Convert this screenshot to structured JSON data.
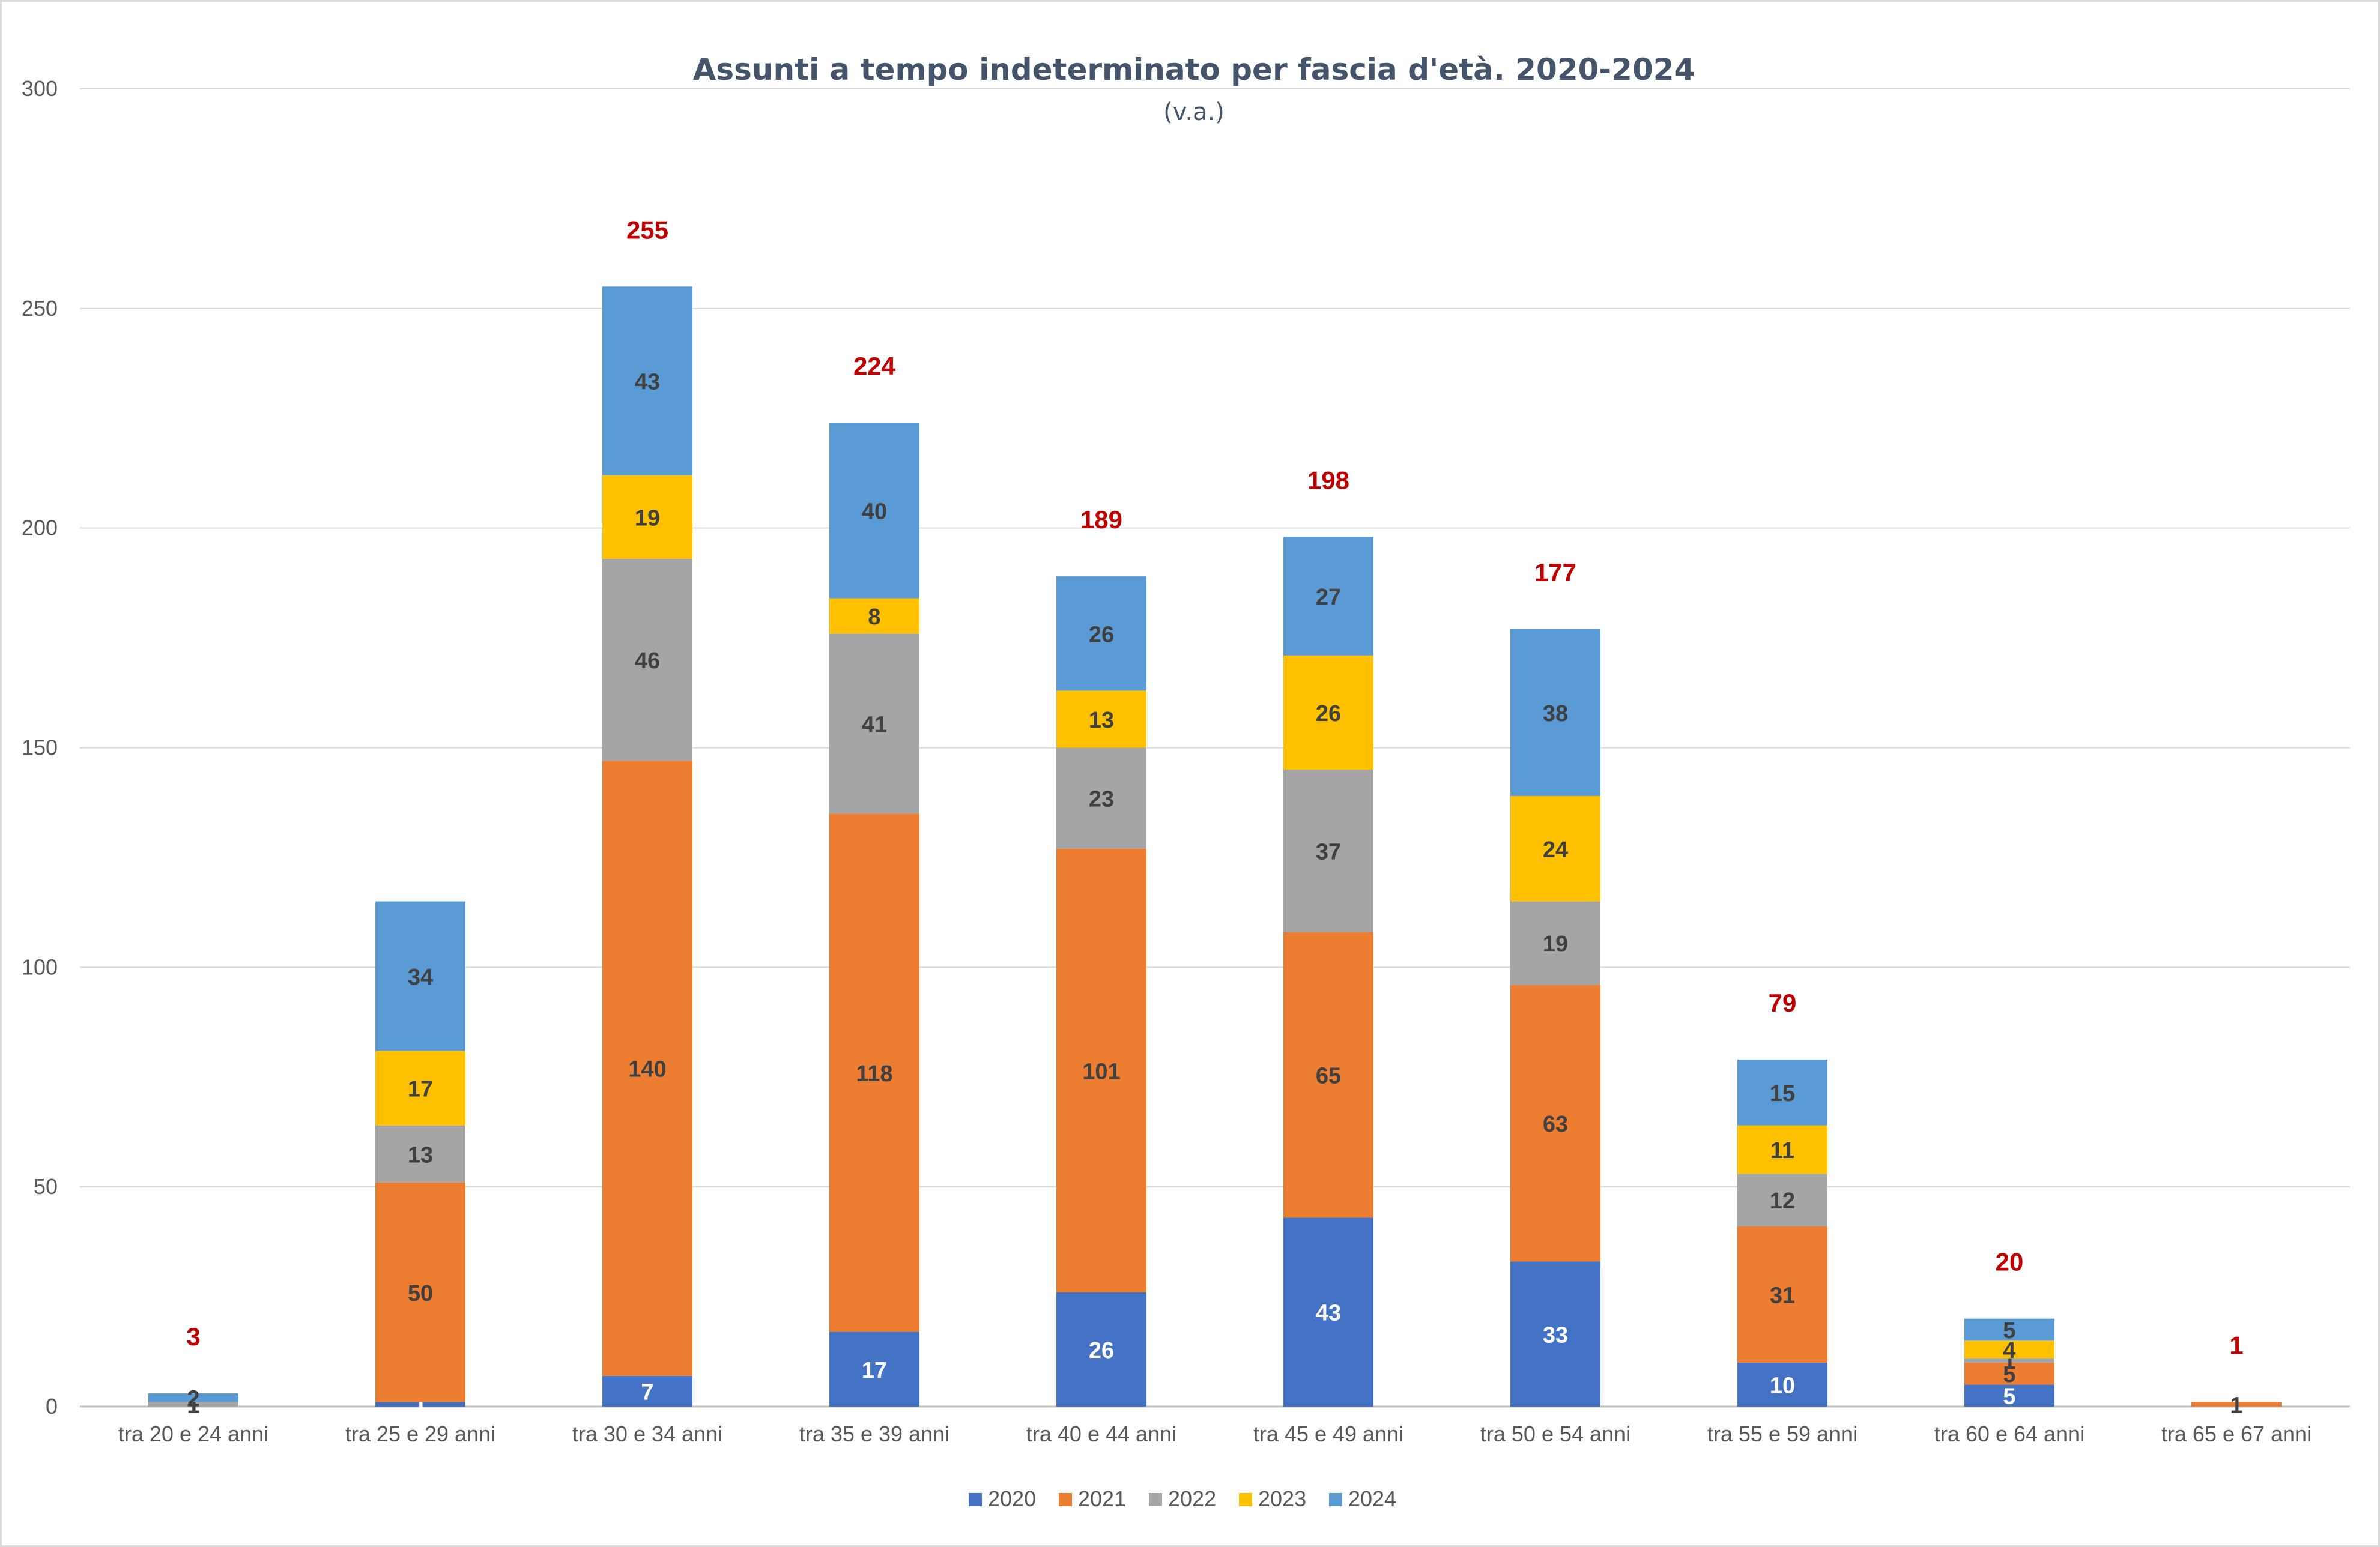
{
  "chart_data": {
    "type": "bar",
    "stacked": true,
    "title": "Assunti a tempo indeterminato per fascia d'età. 2020-2024",
    "subtitle": "(v.a.)",
    "ylim": [
      0,
      300
    ],
    "yticks": [
      "0",
      "50",
      "100",
      "150",
      "200",
      "250",
      "300"
    ],
    "grid": true,
    "legend_position": "bottom",
    "categories": [
      "tra 20 e 24 anni",
      "tra 25 e 29 anni",
      "tra 30 e 34 anni",
      "tra 35 e 39 anni",
      "tra 40 e 44 anni",
      "tra 45 e 49 anni",
      "tra 50 e 54 anni",
      "tra 55 e 59 anni",
      "tra 60 e 64 anni",
      "tra 65 e 67 anni"
    ],
    "series": [
      {
        "name": "2020",
        "color": "#4472c4",
        "label_color": "#ffffff",
        "values": [
          0,
          1,
          7,
          17,
          26,
          43,
          33,
          10,
          5,
          0
        ]
      },
      {
        "name": "2021",
        "color": "#ed7d31",
        "label_color": "#404040",
        "values": [
          0,
          50,
          140,
          118,
          101,
          65,
          63,
          31,
          5,
          1
        ]
      },
      {
        "name": "2022",
        "color": "#a5a5a5",
        "label_color": "#404040",
        "values": [
          1,
          13,
          46,
          41,
          23,
          37,
          19,
          12,
          1,
          0
        ]
      },
      {
        "name": "2023",
        "color": "#ffc000",
        "label_color": "#404040",
        "values": [
          0,
          17,
          19,
          8,
          13,
          26,
          24,
          11,
          4,
          0
        ]
      },
      {
        "name": "2024",
        "color": "#5b9bd5",
        "label_color": "#404040",
        "values": [
          2,
          34,
          43,
          40,
          26,
          27,
          38,
          15,
          5,
          0
        ]
      }
    ],
    "totals": [
      "3",
      "",
      "255",
      "224",
      "189",
      "198",
      "177",
      "79",
      "20",
      "1"
    ],
    "totals_color": "#c00000"
  }
}
